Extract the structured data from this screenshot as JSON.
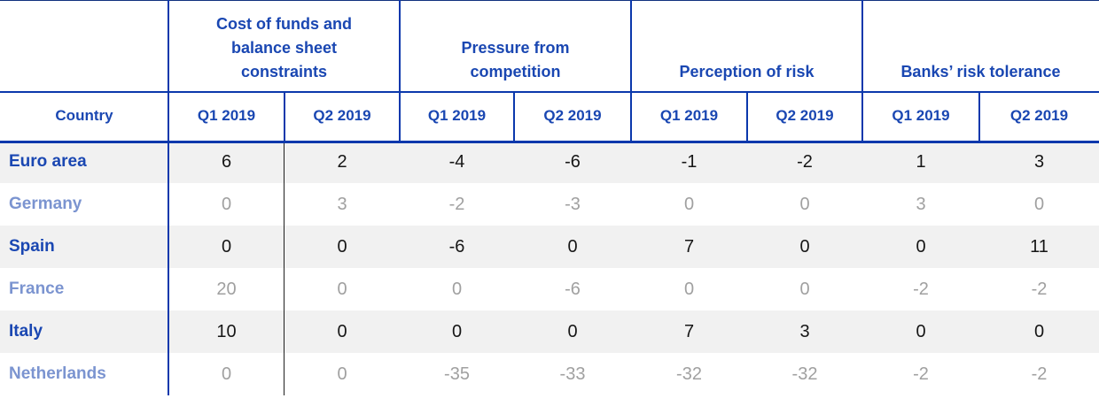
{
  "colors": {
    "header_text_blue": "#1a47b2",
    "border_blue": "#0b38ac",
    "stripe_gray": "#f1f1f1",
    "value_text": "#161616",
    "faded_value_text": "#a0a0a0",
    "data_column_divider_black": "#1f1f1f"
  },
  "table": {
    "country_header": "Country",
    "groups": [
      {
        "label": "Cost of funds and\nbalance sheet\nconstraints"
      },
      {
        "label": "Pressure from\ncompetition"
      },
      {
        "label": "Perception of risk"
      },
      {
        "label": "Banks’ risk tolerance"
      }
    ],
    "quarter_headers": [
      "Q1 2019",
      "Q2 2019",
      "Q1 2019",
      "Q2 2019",
      "Q1 2019",
      "Q2 2019",
      "Q1 2019",
      "Q2 2019"
    ],
    "rows": [
      {
        "country": "Euro area",
        "values": [
          "6",
          "2",
          "-4",
          "-6",
          "-1",
          "-2",
          "1",
          "3"
        ]
      },
      {
        "country": "Germany",
        "values": [
          "0",
          "3",
          "-2",
          "-3",
          "0",
          "0",
          "3",
          "0"
        ]
      },
      {
        "country": "Spain",
        "values": [
          "0",
          "0",
          "-6",
          "0",
          "7",
          "0",
          "0",
          "11"
        ]
      },
      {
        "country": "France",
        "values": [
          "20",
          "0",
          "0",
          "-6",
          "0",
          "0",
          "-2",
          "-2"
        ]
      },
      {
        "country": "Italy",
        "values": [
          "10",
          "0",
          "0",
          "0",
          "7",
          "3",
          "0",
          "0"
        ]
      },
      {
        "country": "Netherlands",
        "values": [
          "0",
          "0",
          "-35",
          "-33",
          "-32",
          "-32",
          "-2",
          "-2"
        ]
      }
    ]
  },
  "chart_data": {
    "type": "table",
    "title": "",
    "column_groups": [
      "Cost of funds and balance sheet constraints",
      "Pressure from competition",
      "Perception of risk",
      "Banks’ risk tolerance"
    ],
    "sub_columns_per_group": [
      "Q1 2019",
      "Q2 2019"
    ],
    "row_header": "Country",
    "rows": [
      {
        "country": "Euro area",
        "values": [
          6,
          2,
          -4,
          -6,
          -1,
          -2,
          1,
          3
        ]
      },
      {
        "country": "Germany",
        "values": [
          0,
          3,
          -2,
          -3,
          0,
          0,
          3,
          0
        ]
      },
      {
        "country": "Spain",
        "values": [
          0,
          0,
          -6,
          0,
          7,
          0,
          0,
          11
        ]
      },
      {
        "country": "France",
        "values": [
          20,
          0,
          0,
          -6,
          0,
          0,
          -2,
          -2
        ]
      },
      {
        "country": "Italy",
        "values": [
          10,
          0,
          0,
          0,
          7,
          3,
          0,
          0
        ]
      },
      {
        "country": "Netherlands",
        "values": [
          0,
          0,
          -35,
          -33,
          -32,
          -32,
          -2,
          -2
        ]
      }
    ],
    "layout_hints": {
      "striped_rows": [
        "Euro area",
        "Spain",
        "Italy"
      ],
      "faded_rows": [
        "Germany",
        "France",
        "Netherlands"
      ]
    }
  }
}
